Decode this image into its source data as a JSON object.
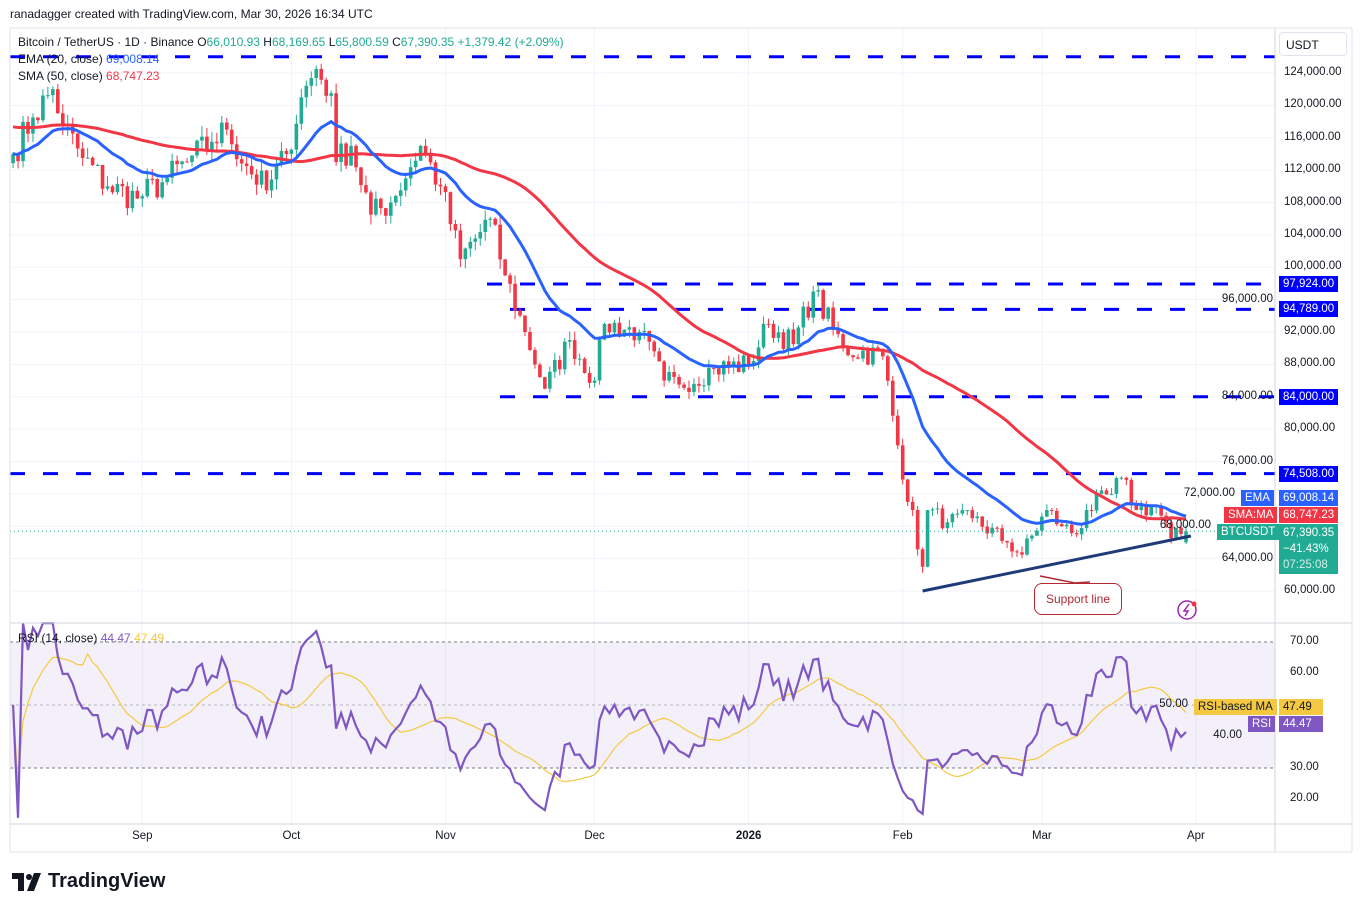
{
  "credit": "ranadagger created with TradingView.com, Mar 30, 2026 16:34 UTC",
  "legend": {
    "symbol": "Bitcoin / TetherUS · 1D · Binance",
    "open": "66,010.93",
    "high": "68,169.65",
    "low": "65,800.59",
    "close": "67,390.35",
    "change": "+1,379.42 (+2.09%)",
    "ema_label": "EMA (20, close)",
    "ema_value": "69,008.14",
    "sma_label": "SMA (50, close)",
    "sma_value": "68,747.23",
    "rsi_label": "RSI (14, close)",
    "rsi_value": "44.47",
    "rsi_ma_value": "47.49"
  },
  "axis": {
    "currency": "USDT",
    "price_ticks": [
      "124,000.00",
      "120,000.00",
      "116,000.00",
      "112,000.00",
      "108,000.00",
      "104,000.00",
      "100,000.00",
      "96,000.00",
      "92,000.00",
      "88,000.00",
      "84,000.00",
      "80,000.00",
      "76,000.00",
      "72,000.00",
      "68,000.00",
      "64,000.00",
      "60,000.00"
    ],
    "rsi_ticks": [
      "70.00",
      "60.00",
      "50.00",
      "40.00",
      "30.00",
      "20.00"
    ],
    "time_ticks": [
      {
        "label": "Sep",
        "date": "2025-09-01"
      },
      {
        "label": "Oct",
        "date": "2025-10-01"
      },
      {
        "label": "Nov",
        "date": "2025-11-01"
      },
      {
        "label": "Dec",
        "date": "2025-12-01"
      },
      {
        "label": "2026",
        "date": "2026-01-01"
      },
      {
        "label": "Feb",
        "date": "2026-02-01"
      },
      {
        "label": "Mar",
        "date": "2026-03-01"
      },
      {
        "label": "Apr",
        "date": "2026-04-01"
      }
    ]
  },
  "price_labels": {
    "ema": {
      "tag": "EMA",
      "value": "69,008.14"
    },
    "sma": {
      "tag": "SMA:MA",
      "value": "68,747.23"
    },
    "last": {
      "tag": "BTCUSDT",
      "value": "67,390.35",
      "change": "−41.43%",
      "countdown": "07:25:08"
    },
    "rsi_ma": {
      "tag": "RSI-based MA",
      "value": "47.49"
    },
    "rsi": {
      "tag": "RSI",
      "value": "44.47"
    }
  },
  "annotation": {
    "support_label": "Support line"
  },
  "brand": "TradingView",
  "colors": {
    "up": "#22ab94",
    "down": "#f23645",
    "ema": "#2962ff",
    "sma": "#f23645",
    "levels": "#0000ff",
    "support": "#1e3a78",
    "rsi": "#7e57c2",
    "rsi_ma": "#f5c842"
  },
  "chart_data": {
    "type": "candlestick",
    "symbol": "BTCUSDT",
    "interval": "1D",
    "ylim": [
      57000,
      127000
    ],
    "rsi_ylim": [
      14,
      76
    ],
    "last_candle": {
      "date": "2026-03-30",
      "open": 66010.93,
      "high": 68169.65,
      "low": 65800.59,
      "close": 67390.35
    },
    "close_waypoints": [
      [
        "2025-08-06",
        114000
      ],
      [
        "2025-08-10",
        118500
      ],
      [
        "2025-08-14",
        122000
      ],
      [
        "2025-08-16",
        117500
      ],
      [
        "2025-08-20",
        113500
      ],
      [
        "2025-08-25",
        110000
      ],
      [
        "2025-08-31",
        108500
      ],
      [
        "2025-09-05",
        110500
      ],
      [
        "2025-09-10",
        113000
      ],
      [
        "2025-09-15",
        115500
      ],
      [
        "2025-09-18",
        117000
      ],
      [
        "2025-09-22",
        112500
      ],
      [
        "2025-09-26",
        109500
      ],
      [
        "2025-09-30",
        114000
      ],
      [
        "2025-10-03",
        121000
      ],
      [
        "2025-10-06",
        124500
      ],
      [
        "2025-10-09",
        121500
      ],
      [
        "2025-10-10",
        113000
      ],
      [
        "2025-10-13",
        115000
      ],
      [
        "2025-10-17",
        106500
      ],
      [
        "2025-10-21",
        108000
      ],
      [
        "2025-10-27",
        115000
      ],
      [
        "2025-10-31",
        110000
      ],
      [
        "2025-11-04",
        101000
      ],
      [
        "2025-11-10",
        106000
      ],
      [
        "2025-11-13",
        99000
      ],
      [
        "2025-11-17",
        92000
      ],
      [
        "2025-11-21",
        85000
      ],
      [
        "2025-11-26",
        91000
      ],
      [
        "2025-12-01",
        86000
      ],
      [
        "2025-12-03",
        93000
      ],
      [
        "2025-12-10",
        92000
      ],
      [
        "2025-12-15",
        86000
      ],
      [
        "2025-12-18",
        85500
      ],
      [
        "2025-12-25",
        87500
      ],
      [
        "2026-01-01",
        88000
      ],
      [
        "2026-01-05",
        93000
      ],
      [
        "2026-01-10",
        90500
      ],
      [
        "2026-01-14",
        97000
      ],
      [
        "2026-01-20",
        90000
      ],
      [
        "2026-01-28",
        89000
      ],
      [
        "2026-01-31",
        78000
      ],
      [
        "2026-02-05",
        63000
      ],
      [
        "2026-02-06",
        70000
      ],
      [
        "2026-02-10",
        68500
      ],
      [
        "2026-02-15",
        69000
      ],
      [
        "2026-02-22",
        66000
      ],
      [
        "2026-02-25",
        64500
      ],
      [
        "2026-03-02",
        70000
      ],
      [
        "2026-03-05",
        68000
      ],
      [
        "2026-03-08",
        67000
      ],
      [
        "2026-03-10",
        70000
      ],
      [
        "2026-03-15",
        72000
      ],
      [
        "2026-03-17",
        74000
      ],
      [
        "2026-03-20",
        70000
      ],
      [
        "2026-03-24",
        70500
      ],
      [
        "2026-03-27",
        66500
      ],
      [
        "2026-03-30",
        67390
      ]
    ],
    "indicators": [
      "EMA 20 (close)",
      "SMA 50 (close)",
      "RSI 14 (close)",
      "RSI-based MA 14"
    ],
    "horizontal_levels": [
      126000,
      97924,
      94789,
      84000,
      74508
    ],
    "support_line": {
      "from": [
        "2026-02-05",
        60000
      ],
      "to": [
        "2026-03-31",
        66800
      ]
    },
    "rsi_bands": [
      30,
      70
    ],
    "grid": true
  }
}
